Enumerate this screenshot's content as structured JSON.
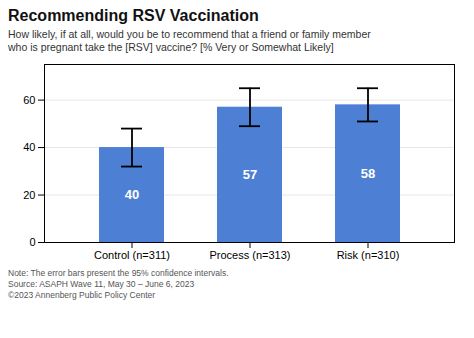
{
  "chart_data": {
    "type": "bar",
    "title": "Recommending RSV Vaccination",
    "subtitle": "How likely, if at all, would you be to recommend that a friend or family member\nwho is pregnant take the [RSV] vaccine? [% Very or Somewhat Likely]",
    "categories": [
      "Control (n=311)",
      "Process (n=313)",
      "Risk (n=310)"
    ],
    "values": [
      40,
      57,
      58
    ],
    "errors": [
      8,
      8,
      7
    ],
    "color": "#4d7fd4",
    "ylim": [
      0,
      75
    ],
    "yticks": [
      0,
      20,
      40,
      60
    ],
    "grid": true,
    "data_labels": true,
    "notes": [
      "Note: The error bars present the 95% confidence intervals.",
      "Source: ASAPH Wave 11, May 30 – June 6, 2023",
      "©2023 Annenberg Public Policy Center"
    ]
  }
}
